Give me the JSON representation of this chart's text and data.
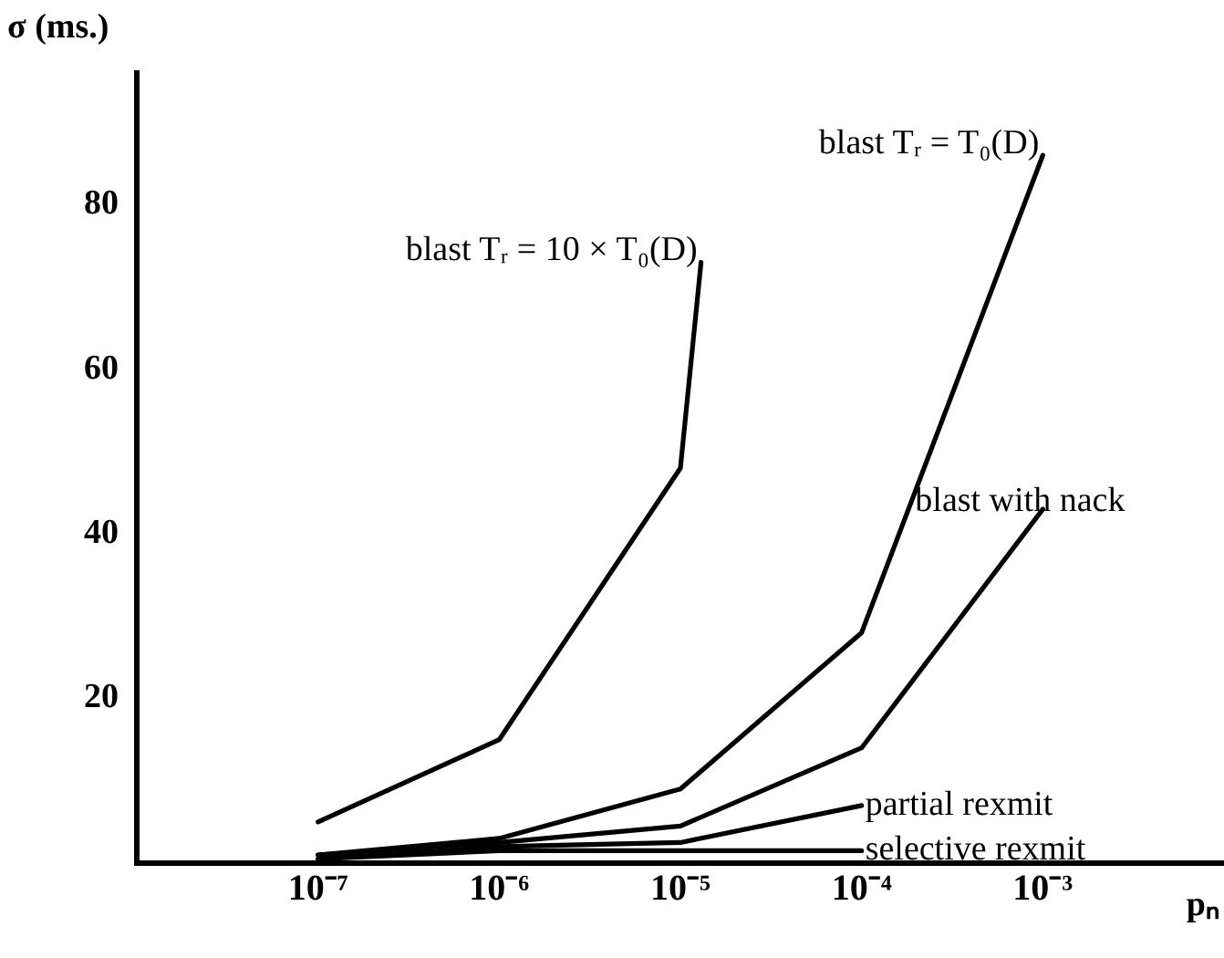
{
  "chart_data": {
    "type": "line",
    "xlabel": "pₙ",
    "ylabel": "σ (ms.)",
    "log": "x",
    "grid": false,
    "legend": false,
    "marker": "none",
    "line_style": "solid",
    "xlim": [
      1e-08,
      0.01
    ],
    "xticks": [
      {
        "value": 1e-07,
        "label": "10⁻⁷"
      },
      {
        "value": 1e-06,
        "label": "10⁻⁶"
      },
      {
        "value": 1e-05,
        "label": "10⁻⁵"
      },
      {
        "value": 0.0001,
        "label": "10⁻⁴"
      },
      {
        "value": 0.001,
        "label": "10⁻³"
      }
    ],
    "ylim": [
      0,
      96
    ],
    "yticks": [
      20,
      40,
      60,
      80
    ],
    "series": [
      {
        "name": "blast Tᵣ = 10 × T₀(D)",
        "color": "#000000",
        "x": [
          1e-07,
          1e-06,
          1e-05,
          1.3e-05
        ],
        "values": [
          5,
          15,
          48,
          73
        ]
      },
      {
        "name": "blast Tᵣ = T₀(D)",
        "color": "#000000",
        "x": [
          1e-07,
          1e-06,
          1e-05,
          0.0001,
          0.001
        ],
        "values": [
          1,
          3,
          9,
          28,
          86
        ]
      },
      {
        "name": "blast with nack",
        "color": "#000000",
        "x": [
          1e-07,
          1e-06,
          1e-05,
          0.0001,
          0.001
        ],
        "values": [
          1,
          2.5,
          4.5,
          14,
          43
        ]
      },
      {
        "name": "partial rexmit",
        "color": "#000000",
        "x": [
          1e-07,
          1e-06,
          1e-05,
          0.0001
        ],
        "values": [
          0.5,
          2,
          2.5,
          7
        ]
      },
      {
        "name": "selective rexmit",
        "color": "#000000",
        "x": [
          1e-07,
          1e-06,
          1e-05,
          0.0001
        ],
        "values": [
          0.5,
          1.5,
          1.5,
          1.5
        ]
      }
    ]
  }
}
